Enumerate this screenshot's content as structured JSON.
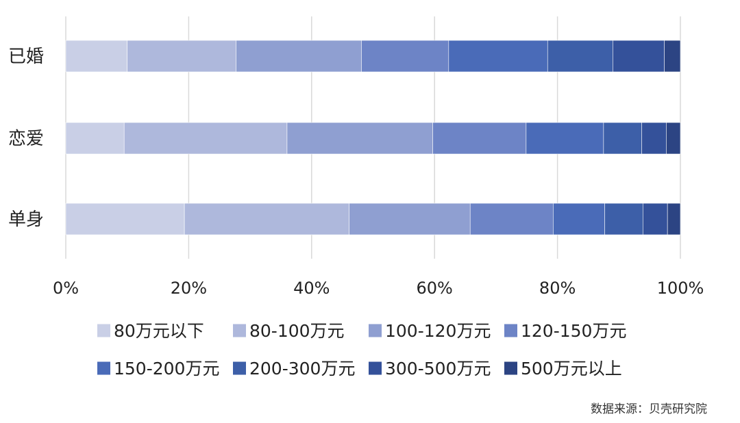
{
  "chart_data": {
    "type": "bar",
    "orientation": "horizontal",
    "stacked": "percent",
    "categories": [
      "已婚",
      "恋爱",
      "单身"
    ],
    "series": [
      {
        "name": "80万元以下",
        "color": "#c9cfe6",
        "values": [
          10.0,
          9.5,
          19.3
        ]
      },
      {
        "name": "80-100万元",
        "color": "#aeb8dc",
        "values": [
          17.7,
          26.5,
          26.8
        ]
      },
      {
        "name": "100-120万元",
        "color": "#8f9fd1",
        "values": [
          20.4,
          23.7,
          19.7
        ]
      },
      {
        "name": "120-150万元",
        "color": "#6d84c6",
        "values": [
          14.2,
          15.2,
          13.5
        ]
      },
      {
        "name": "150-200万元",
        "color": "#4a6bb8",
        "values": [
          16.1,
          12.6,
          8.4
        ]
      },
      {
        "name": "200-300万元",
        "color": "#3d5fa8",
        "values": [
          10.6,
          6.2,
          6.2
        ]
      },
      {
        "name": "300-500万元",
        "color": "#34519a",
        "values": [
          8.4,
          4.0,
          4.0
        ]
      },
      {
        "name": "500万元以上",
        "color": "#2c4483",
        "values": [
          2.6,
          2.3,
          2.1
        ]
      }
    ],
    "x_ticks": [
      "0%",
      "20%",
      "40%",
      "60%",
      "80%",
      "100%"
    ],
    "xlim": [
      0,
      100
    ],
    "grid": "vertical",
    "legend_position": "bottom",
    "source": "数据来源：贝壳研究院"
  }
}
